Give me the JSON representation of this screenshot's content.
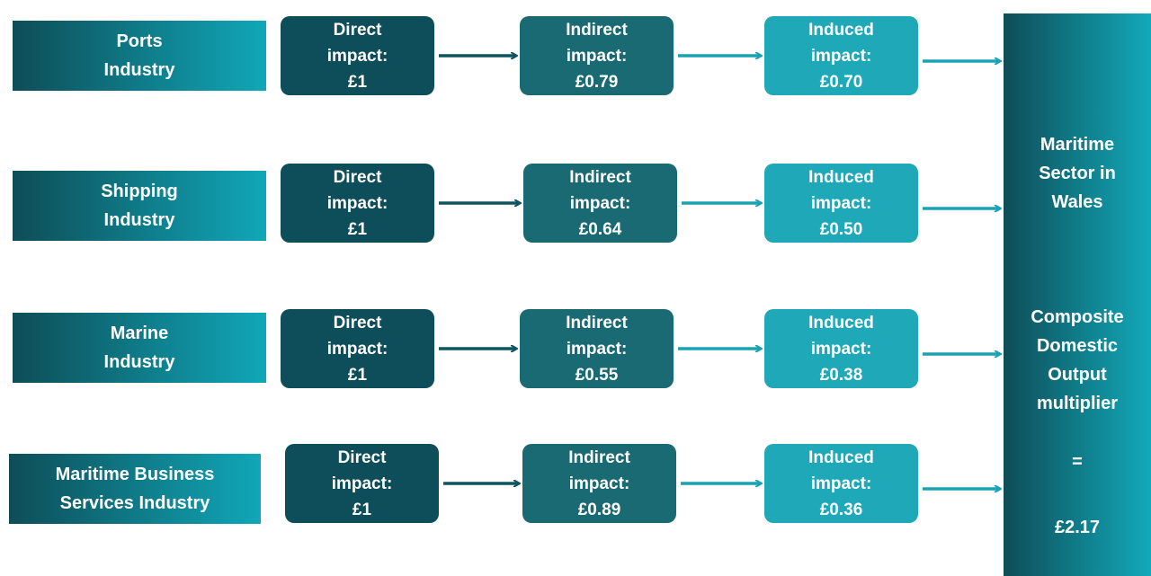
{
  "rows": [
    {
      "industry": [
        "Ports",
        "Industry"
      ],
      "direct": [
        "Direct",
        "impact:",
        "£1"
      ],
      "indirect": [
        "Indirect",
        "impact:",
        "£0.79"
      ],
      "induced": [
        "Induced",
        "impact:",
        "£0.70"
      ]
    },
    {
      "industry": [
        "Shipping",
        "Industry"
      ],
      "direct": [
        "Direct",
        "impact:",
        "£1"
      ],
      "indirect": [
        "Indirect",
        "impact:",
        "£0.64"
      ],
      "induced": [
        "Induced",
        "impact:",
        "£0.50"
      ]
    },
    {
      "industry": [
        "Marine",
        "Industry"
      ],
      "direct": [
        "Direct",
        "impact:",
        "£1"
      ],
      "indirect": [
        "Indirect",
        "impact:",
        "£0.55"
      ],
      "induced": [
        "Induced",
        "impact:",
        "£0.38"
      ]
    },
    {
      "industry": [
        "Maritime Business",
        "Services Industry"
      ],
      "direct": [
        "Direct",
        "impact:",
        "£1"
      ],
      "indirect": [
        "Indirect",
        "impact:",
        "£0.89"
      ],
      "induced": [
        "Induced",
        "impact:",
        "£0.36"
      ]
    }
  ],
  "summary": {
    "sector": [
      "Maritime",
      "Sector in",
      "Wales"
    ],
    "multiplier": [
      "Composite",
      "Domestic",
      "Output",
      "multiplier"
    ],
    "equals": "=",
    "value": "£2.17"
  }
}
